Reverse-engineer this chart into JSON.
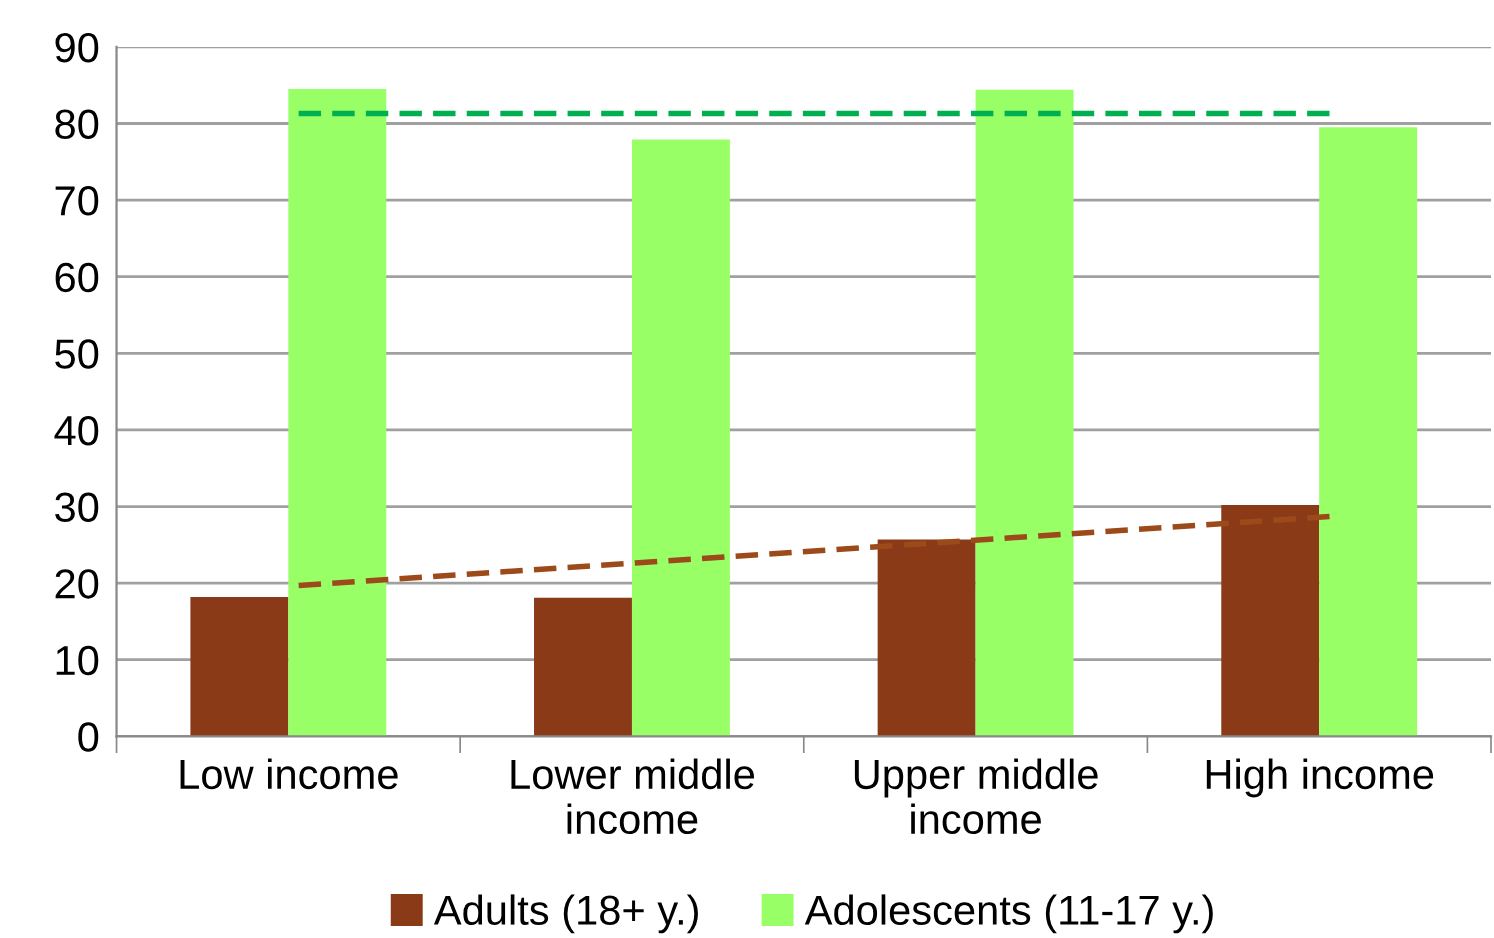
{
  "chart_data": {
    "type": "bar",
    "categories": [
      "Low income",
      "Lower middle\nincome",
      "Upper middle\nincome",
      "High income"
    ],
    "series": [
      {
        "name": "Adults (18+ y.)",
        "color": "#8b3a17",
        "values": [
          18.2,
          18.1,
          25.7,
          30.2
        ]
      },
      {
        "name": "Adolescents (11-17 y.)",
        "color": "#99ff66",
        "values": [
          84.5,
          77.9,
          84.4,
          79.5
        ]
      },
      {
        "type": "line",
        "color": "#9c4a1a",
        "line_style": "dashed",
        "values": [
          19.7,
          22.7,
          25.7,
          28.7
        ]
      },
      {
        "type": "line",
        "color": "#00b050",
        "line_style": "dashed",
        "values": [
          81.3,
          81.3,
          81.3,
          81.3
        ]
      }
    ],
    "ylim": [
      0,
      90
    ],
    "yticks": [
      0,
      10,
      20,
      30,
      40,
      50,
      60,
      70,
      80,
      90
    ],
    "grid": "y",
    "legend": "bottom"
  }
}
